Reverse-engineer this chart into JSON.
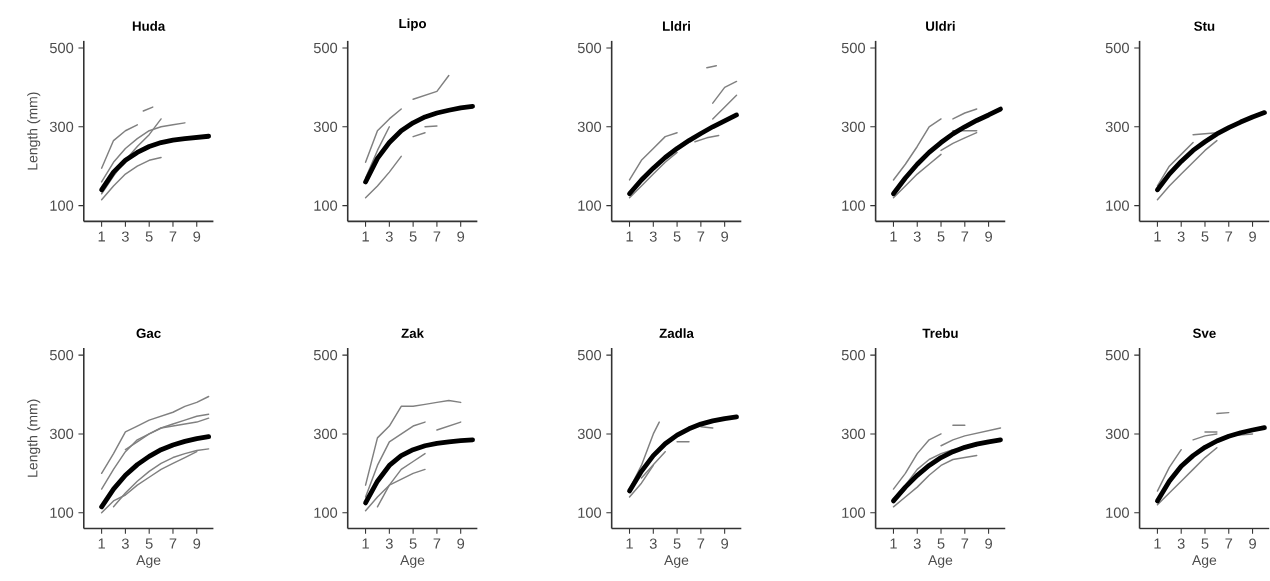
{
  "chart_data": [
    {
      "type": "line",
      "title": "Huda",
      "ylabel": "Length (mm)",
      "x": [
        1,
        2,
        3,
        4,
        5,
        6,
        7,
        8,
        9,
        10
      ],
      "xlim": [
        -0.5,
        10.4
      ],
      "xticks": [
        1,
        3,
        5,
        7,
        9
      ],
      "ylim": [
        60,
        518
      ],
      "yticks": [
        100,
        300,
        500
      ],
      "series": [
        {
          "color": "#808080",
          "x": [
            1,
            2,
            3,
            4
          ],
          "values": [
            195,
            265,
            290,
            305
          ]
        },
        {
          "color": "#808080",
          "x": [
            1,
            2,
            3,
            4,
            5,
            6
          ],
          "values": [
            115,
            150,
            180,
            200,
            215,
            222
          ]
        },
        {
          "color": "#808080",
          "x": [
            1,
            2,
            3,
            4,
            5,
            6,
            7,
            8
          ],
          "values": [
            160,
            210,
            245,
            270,
            290,
            300,
            305,
            310
          ]
        },
        {
          "color": "#808080",
          "x": [
            1,
            2,
            3,
            4,
            5,
            6
          ],
          "values": [
            130,
            175,
            215,
            250,
            280,
            320
          ]
        },
        {
          "color": "#808080",
          "x": [
            4.5,
            5.3
          ],
          "values": [
            340,
            350
          ]
        },
        {
          "color": "#000000",
          "values": [
            140,
            185,
            215,
            235,
            250,
            260,
            266,
            270,
            273,
            276
          ]
        }
      ]
    },
    {
      "type": "line",
      "title": "Lipo",
      "x": [
        1,
        2,
        3,
        4,
        5,
        6,
        7,
        8,
        9,
        10
      ],
      "xlim": [
        -0.5,
        10.4
      ],
      "xticks": [
        1,
        3,
        5,
        7,
        9
      ],
      "ylim": [
        60,
        518
      ],
      "yticks": [
        100,
        300,
        500
      ],
      "series": [
        {
          "color": "#808080",
          "x": [
            1,
            2,
            3,
            4
          ],
          "values": [
            210,
            290,
            320,
            345
          ]
        },
        {
          "color": "#808080",
          "x": [
            1,
            2,
            3,
            4
          ],
          "values": [
            120,
            150,
            185,
            225
          ]
        },
        {
          "color": "#808080",
          "x": [
            1,
            2,
            3
          ],
          "values": [
            170,
            240,
            300
          ]
        },
        {
          "color": "#808080",
          "x": [
            5,
            7,
            8
          ],
          "values": [
            370,
            390,
            430
          ]
        },
        {
          "color": "#808080",
          "x": [
            5,
            6
          ],
          "values": [
            275,
            285
          ]
        },
        {
          "color": "#808080",
          "x": [
            6,
            7
          ],
          "values": [
            300,
            302
          ]
        },
        {
          "color": "#000000",
          "values": [
            160,
            220,
            260,
            290,
            310,
            325,
            335,
            342,
            348,
            352
          ]
        }
      ]
    },
    {
      "type": "line",
      "title": "Lldri",
      "x": [
        1,
        2,
        3,
        4,
        5,
        6,
        7,
        8,
        9,
        10
      ],
      "xlim": [
        -0.5,
        10.4
      ],
      "xticks": [
        1,
        3,
        5,
        7,
        9
      ],
      "ylim": [
        60,
        518
      ],
      "yticks": [
        100,
        300,
        500
      ],
      "series": [
        {
          "color": "#808080",
          "x": [
            1,
            2,
            3,
            4,
            5
          ],
          "values": [
            165,
            215,
            245,
            275,
            285
          ]
        },
        {
          "color": "#808080",
          "x": [
            1,
            2,
            3,
            4,
            5
          ],
          "values": [
            120,
            150,
            180,
            210,
            235
          ]
        },
        {
          "color": "#808080",
          "x": [
            6.5,
            7.5,
            8.5
          ],
          "values": [
            262,
            272,
            278
          ]
        },
        {
          "color": "#808080",
          "x": [
            7.5,
            8.3
          ],
          "values": [
            450,
            455
          ]
        },
        {
          "color": "#808080",
          "x": [
            8,
            9,
            10
          ],
          "values": [
            360,
            400,
            415
          ]
        },
        {
          "color": "#808080",
          "x": [
            8,
            10
          ],
          "values": [
            320,
            380
          ]
        },
        {
          "color": "#000000",
          "values": [
            130,
            165,
            195,
            222,
            245,
            265,
            283,
            300,
            315,
            330
          ]
        }
      ]
    },
    {
      "type": "line",
      "title": "Uldri",
      "x": [
        1,
        2,
        3,
        4,
        5,
        6,
        7,
        8,
        9,
        10
      ],
      "xlim": [
        -0.5,
        10.4
      ],
      "xticks": [
        1,
        3,
        5,
        7,
        9
      ],
      "ylim": [
        60,
        518
      ],
      "yticks": [
        100,
        300,
        500
      ],
      "series": [
        {
          "color": "#808080",
          "x": [
            1,
            2,
            3,
            4,
            5
          ],
          "values": [
            165,
            205,
            250,
            300,
            320
          ]
        },
        {
          "color": "#808080",
          "x": [
            1,
            2,
            3,
            4,
            5
          ],
          "values": [
            120,
            150,
            180,
            205,
            230
          ]
        },
        {
          "color": "#808080",
          "x": [
            5,
            6,
            7,
            8
          ],
          "values": [
            240,
            258,
            272,
            285
          ]
        },
        {
          "color": "#808080",
          "x": [
            6,
            7,
            8
          ],
          "values": [
            320,
            335,
            345
          ]
        },
        {
          "color": "#808080",
          "x": [
            6,
            8
          ],
          "values": [
            290,
            290
          ]
        },
        {
          "color": "#000000",
          "values": [
            130,
            170,
            205,
            235,
            260,
            282,
            300,
            316,
            330,
            345
          ]
        }
      ]
    },
    {
      "type": "line",
      "title": "Stu",
      "x": [
        1,
        2,
        3,
        4,
        5,
        6,
        7,
        8,
        9,
        10
      ],
      "xlim": [
        -0.5,
        10.4
      ],
      "xticks": [
        1,
        3,
        5,
        7,
        9
      ],
      "ylim": [
        60,
        518
      ],
      "yticks": [
        100,
        300,
        500
      ],
      "series": [
        {
          "color": "#808080",
          "x": [
            1,
            2,
            3,
            4
          ],
          "values": [
            150,
            200,
            230,
            260
          ]
        },
        {
          "color": "#808080",
          "x": [
            1,
            2,
            3,
            4,
            5,
            6
          ],
          "values": [
            115,
            150,
            180,
            210,
            240,
            265
          ]
        },
        {
          "color": "#808080",
          "x": [
            4,
            6
          ],
          "values": [
            280,
            285
          ]
        },
        {
          "color": "#000000",
          "values": [
            140,
            180,
            212,
            240,
            262,
            282,
            298,
            312,
            325,
            336
          ]
        }
      ]
    },
    {
      "type": "line",
      "title": "Gac",
      "ylabel": "Length (mm)",
      "xlabel": "Age",
      "x": [
        1,
        2,
        3,
        4,
        5,
        6,
        7,
        8,
        9,
        10
      ],
      "xlim": [
        -0.5,
        10.4
      ],
      "xticks": [
        1,
        3,
        5,
        7,
        9
      ],
      "ylim": [
        60,
        518
      ],
      "yticks": [
        100,
        300,
        500
      ],
      "series": [
        {
          "color": "#808080",
          "x": [
            1,
            2,
            3,
            4,
            5,
            6,
            7,
            8,
            9,
            10
          ],
          "values": [
            200,
            250,
            305,
            320,
            335,
            345,
            355,
            370,
            380,
            395
          ]
        },
        {
          "color": "#808080",
          "x": [
            1,
            2,
            3,
            4,
            5,
            6,
            7,
            8,
            9
          ],
          "values": [
            100,
            130,
            145,
            170,
            190,
            210,
            225,
            240,
            255
          ]
        },
        {
          "color": "#808080",
          "x": [
            1,
            2,
            3,
            4,
            5,
            6,
            7,
            8,
            9,
            10
          ],
          "values": [
            160,
            210,
            255,
            285,
            300,
            315,
            325,
            335,
            345,
            350
          ]
        },
        {
          "color": "#808080",
          "x": [
            2,
            3,
            4,
            5,
            6,
            7,
            8,
            9,
            10
          ],
          "values": [
            115,
            150,
            180,
            205,
            225,
            240,
            250,
            258,
            262
          ]
        },
        {
          "color": "#808080",
          "x": [
            3,
            4,
            5,
            6,
            7,
            8,
            9,
            10
          ],
          "values": [
            260,
            280,
            300,
            315,
            320,
            325,
            330,
            340
          ]
        },
        {
          "color": "#000000",
          "values": [
            115,
            160,
            195,
            222,
            243,
            260,
            272,
            281,
            288,
            293
          ]
        }
      ]
    },
    {
      "type": "line",
      "title": "Zak",
      "xlabel": "Age",
      "x": [
        1,
        2,
        3,
        4,
        5,
        6,
        7,
        8,
        9,
        10
      ],
      "xlim": [
        -0.5,
        10.4
      ],
      "xticks": [
        1,
        3,
        5,
        7,
        9
      ],
      "ylim": [
        60,
        518
      ],
      "yticks": [
        100,
        300,
        500
      ],
      "series": [
        {
          "color": "#808080",
          "x": [
            1,
            2,
            3,
            4,
            5,
            6,
            7,
            8,
            9
          ],
          "values": [
            170,
            290,
            320,
            370,
            370,
            375,
            380,
            385,
            380
          ]
        },
        {
          "color": "#808080",
          "x": [
            1,
            2,
            3,
            4,
            5,
            6
          ],
          "values": [
            105,
            140,
            170,
            185,
            200,
            210
          ]
        },
        {
          "color": "#808080",
          "x": [
            1,
            2,
            3,
            4,
            5,
            6
          ],
          "values": [
            140,
            220,
            280,
            300,
            320,
            330
          ]
        },
        {
          "color": "#808080",
          "x": [
            2,
            3,
            4,
            5,
            6
          ],
          "values": [
            115,
            170,
            210,
            230,
            250
          ]
        },
        {
          "color": "#808080",
          "x": [
            7,
            9
          ],
          "values": [
            310,
            330
          ]
        },
        {
          "color": "#000000",
          "values": [
            125,
            180,
            220,
            245,
            260,
            270,
            276,
            280,
            283,
            285
          ]
        }
      ]
    },
    {
      "type": "line",
      "title": "Zadla",
      "xlabel": "Age",
      "x": [
        1,
        2,
        3,
        4,
        5,
        6,
        7,
        8,
        9,
        10
      ],
      "xlim": [
        -0.5,
        10.4
      ],
      "xticks": [
        1,
        3,
        5,
        7,
        9
      ],
      "ylim": [
        60,
        518
      ],
      "yticks": [
        100,
        300,
        500
      ],
      "series": [
        {
          "color": "#808080",
          "x": [
            1,
            2,
            3,
            3.5
          ],
          "values": [
            160,
            220,
            300,
            330
          ]
        },
        {
          "color": "#808080",
          "x": [
            1,
            2,
            3
          ],
          "values": [
            140,
            175,
            220
          ]
        },
        {
          "color": "#808080",
          "x": [
            2,
            3,
            4
          ],
          "values": [
            188,
            222,
            255
          ]
        },
        {
          "color": "#808080",
          "x": [
            5,
            6
          ],
          "values": [
            280,
            280
          ]
        },
        {
          "color": "#808080",
          "x": [
            7,
            8
          ],
          "values": [
            318,
            315
          ]
        },
        {
          "color": "#000000",
          "values": [
            155,
            205,
            245,
            275,
            297,
            313,
            325,
            333,
            339,
            343
          ]
        }
      ]
    },
    {
      "type": "line",
      "title": "Trebu",
      "xlabel": "Age",
      "x": [
        1,
        2,
        3,
        4,
        5,
        6,
        7,
        8,
        9,
        10
      ],
      "xlim": [
        -0.5,
        10.4
      ],
      "xticks": [
        1,
        3,
        5,
        7,
        9
      ],
      "ylim": [
        60,
        518
      ],
      "yticks": [
        100,
        300,
        500
      ],
      "series": [
        {
          "color": "#808080",
          "x": [
            1,
            2,
            3,
            4,
            5
          ],
          "values": [
            160,
            200,
            250,
            285,
            300
          ]
        },
        {
          "color": "#808080",
          "x": [
            1,
            2,
            3,
            4,
            5,
            6,
            7,
            8
          ],
          "values": [
            115,
            140,
            165,
            195,
            220,
            235,
            240,
            245
          ]
        },
        {
          "color": "#808080",
          "x": [
            5,
            6,
            7,
            10
          ],
          "values": [
            270,
            285,
            295,
            315
          ]
        },
        {
          "color": "#808080",
          "x": [
            6,
            7
          ],
          "values": [
            322,
            322
          ]
        },
        {
          "color": "#808080",
          "x": [
            2,
            3,
            4,
            5,
            6,
            7,
            8
          ],
          "values": [
            170,
            210,
            235,
            250,
            260,
            265,
            270
          ]
        },
        {
          "color": "#000000",
          "values": [
            130,
            165,
            195,
            220,
            240,
            255,
            266,
            274,
            280,
            285
          ]
        }
      ]
    },
    {
      "type": "line",
      "title": "Sve",
      "xlabel": "Age",
      "x": [
        1,
        2,
        3,
        4,
        5,
        6,
        7,
        8,
        9,
        10
      ],
      "xlim": [
        -0.5,
        10.4
      ],
      "xticks": [
        1,
        3,
        5,
        7,
        9
      ],
      "ylim": [
        60,
        518
      ],
      "yticks": [
        100,
        300,
        500
      ],
      "series": [
        {
          "color": "#808080",
          "x": [
            1,
            2,
            3
          ],
          "values": [
            155,
            215,
            260
          ]
        },
        {
          "color": "#808080",
          "x": [
            1,
            2,
            3,
            4,
            5,
            6
          ],
          "values": [
            120,
            150,
            180,
            210,
            240,
            265
          ]
        },
        {
          "color": "#808080",
          "x": [
            4,
            5,
            6
          ],
          "values": [
            285,
            295,
            300
          ]
        },
        {
          "color": "#808080",
          "x": [
            6,
            7
          ],
          "values": [
            352,
            354
          ]
        },
        {
          "color": "#808080",
          "x": [
            5,
            6
          ],
          "values": [
            305,
            305
          ]
        },
        {
          "color": "#808080",
          "x": [
            7,
            9
          ],
          "values": [
            295,
            300
          ]
        },
        {
          "color": "#000000",
          "values": [
            130,
            180,
            218,
            245,
            266,
            282,
            294,
            303,
            310,
            316
          ]
        }
      ]
    }
  ]
}
